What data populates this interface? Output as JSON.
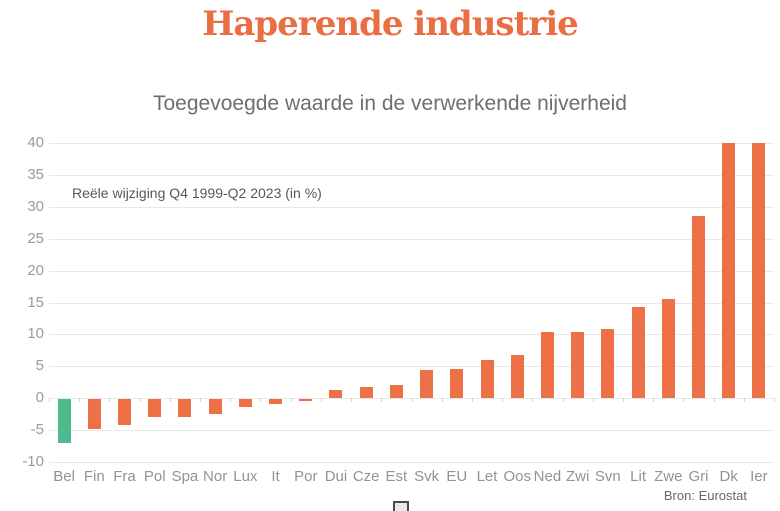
{
  "header": {
    "title": "Haperende industrie",
    "subtitle": "Toegevoegde waarde in de verwerkende nijverheid"
  },
  "footer": {
    "source": "Bron: Eurostat"
  },
  "chart_data": {
    "type": "bar",
    "title": "Haperende industrie",
    "subtitle": "Toegevoegde waarde in de verwerkende nijverheid",
    "annotation": "Reële wijziging Q4 1999-Q2 2023 (in %)",
    "source": "Bron: Eurostat",
    "categories": [
      "Bel",
      "Fin",
      "Fra",
      "Pol",
      "Spa",
      "Nor",
      "Lux",
      "It",
      "Por",
      "Dui",
      "Cze",
      "Est",
      "Svk",
      "EU",
      "Let",
      "Oos",
      "Ned",
      "Zwi",
      "Svn",
      "Lit",
      "Zwe",
      "Gri",
      "Dk",
      "Ier"
    ],
    "values": [
      -6.9,
      -4.7,
      -4.1,
      -2.8,
      -2.8,
      -2.3,
      -1.2,
      -0.8,
      -0.3,
      1.3,
      1.7,
      2.0,
      4.4,
      4.6,
      6.0,
      6.8,
      10.3,
      10.4,
      10.9,
      14.3,
      15.6,
      28.5,
      40,
      40
    ],
    "ylim": [
      -10,
      40
    ],
    "yticks": [
      40,
      35,
      30,
      25,
      20,
      15,
      10,
      5,
      0,
      -5,
      -10
    ],
    "grid": true,
    "legend_position": "none",
    "xlabel": "",
    "ylabel": "",
    "colors": {
      "bar": "#ED7046",
      "highlight": "#4FBA8E",
      "highlight_index": 0,
      "title": "#EA6E44",
      "gridline": "#e9e9e9"
    }
  }
}
